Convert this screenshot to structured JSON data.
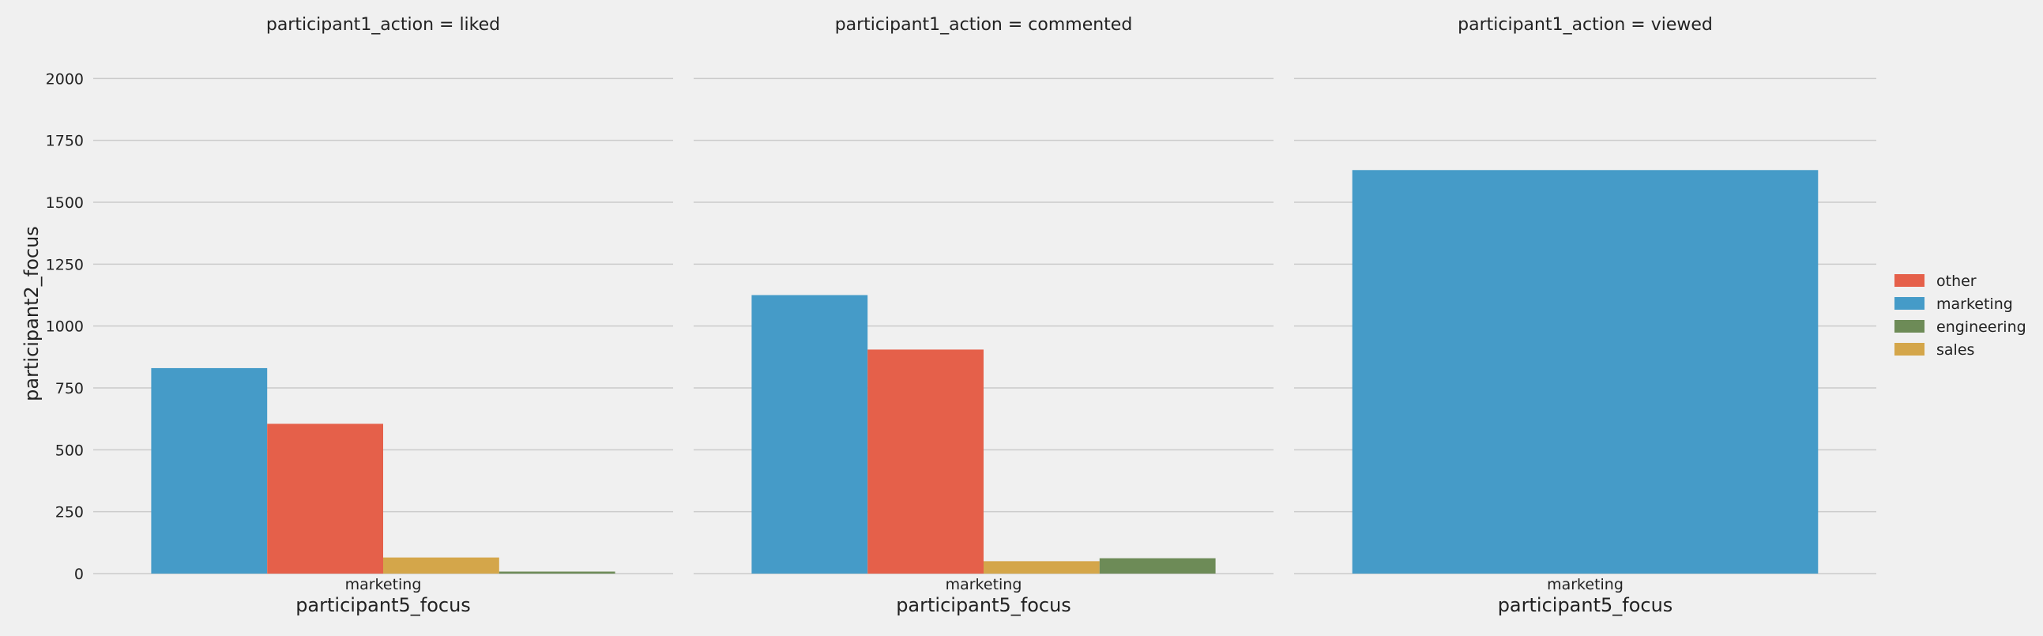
{
  "chart_data": {
    "type": "bar",
    "ylabel": "participant2_focus",
    "ylim": [
      0,
      2100
    ],
    "yticks": [
      0,
      250,
      500,
      750,
      1000,
      1250,
      1500,
      1750,
      2000
    ],
    "ytick_labels": [
      "0",
      "250",
      "500",
      "750",
      "1000",
      "1250",
      "1500",
      "1750",
      "2000"
    ],
    "grid": "horizontal",
    "legend_placement": "right",
    "legend": [
      {
        "name": "other",
        "color": "#e5604a"
      },
      {
        "name": "marketing",
        "color": "#459bc8"
      },
      {
        "name": "engineering",
        "color": "#6d8b57"
      },
      {
        "name": "sales",
        "color": "#d4a64a"
      }
    ],
    "panels": [
      {
        "title": "participant1_action = liked",
        "xlabel": "participant5_focus",
        "categories": [
          "marketing"
        ],
        "bars": [
          {
            "hue": "marketing",
            "value": 830
          },
          {
            "hue": "other",
            "value": 605
          },
          {
            "hue": "sales",
            "value": 65
          },
          {
            "hue": "engineering",
            "value": 8
          }
        ]
      },
      {
        "title": "participant1_action = commented",
        "xlabel": "participant5_focus",
        "categories": [
          "marketing"
        ],
        "bars": [
          {
            "hue": "marketing",
            "value": 1125
          },
          {
            "hue": "other",
            "value": 905
          },
          {
            "hue": "sales",
            "value": 50
          },
          {
            "hue": "engineering",
            "value": 62
          }
        ]
      },
      {
        "title": "participant1_action = viewed",
        "xlabel": "participant5_focus",
        "categories": [
          "marketing"
        ],
        "bars": [
          {
            "hue": "marketing",
            "value": 1630
          }
        ]
      }
    ]
  }
}
